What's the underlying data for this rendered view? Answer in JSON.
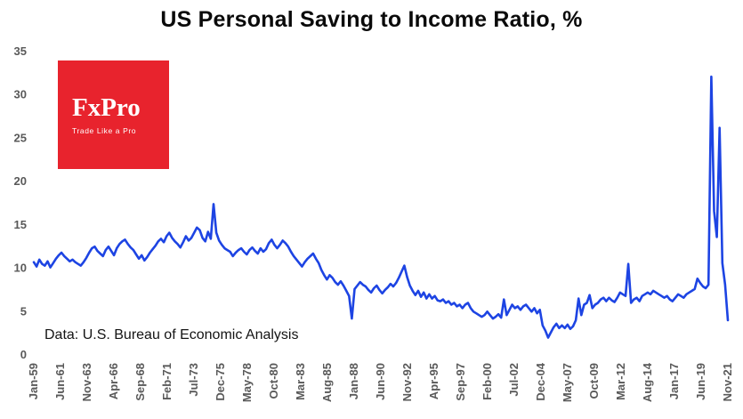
{
  "chart_data": {
    "type": "line",
    "title": "US Personal Saving to Income Ratio, %",
    "xlabel": "",
    "ylabel": "",
    "ylim": [
      0,
      35
    ],
    "y_ticks": [
      0,
      5,
      10,
      15,
      20,
      25,
      30,
      35
    ],
    "grid": false,
    "legend": "none",
    "x_tick_labels": [
      "Jan-59",
      "Jun-61",
      "Nov-63",
      "Apr-66",
      "Sep-68",
      "Feb-71",
      "Jul-73",
      "Dec-75",
      "May-78",
      "Oct-80",
      "Mar-83",
      "Aug-85",
      "Jan-88",
      "Jun-90",
      "Nov-92",
      "Apr-95",
      "Sep-97",
      "Feb-00",
      "Jul-02",
      "Dec-04",
      "May-07",
      "Oct-09",
      "Mar-12",
      "Aug-14",
      "Jan-17",
      "Jun-19",
      "Nov-21"
    ],
    "series": [
      {
        "name": "US Personal Saving to Income Ratio, %",
        "color": "#1d44e3",
        "x_start": "1959 Q1",
        "x_end": "2021 Q4",
        "frequency": "quarterly",
        "values": [
          10.6,
          10.1,
          10.9,
          10.4,
          10.2,
          10.7,
          10.0,
          10.5,
          11.0,
          11.4,
          11.7,
          11.3,
          11.0,
          10.7,
          10.9,
          10.6,
          10.4,
          10.2,
          10.6,
          11.1,
          11.7,
          12.2,
          12.4,
          11.9,
          11.6,
          11.3,
          12.0,
          12.4,
          11.9,
          11.4,
          12.2,
          12.7,
          13.0,
          13.2,
          12.7,
          12.3,
          12.0,
          11.5,
          11.0,
          11.4,
          10.8,
          11.2,
          11.7,
          12.1,
          12.5,
          13.0,
          13.3,
          12.9,
          13.6,
          14.0,
          13.4,
          13.0,
          12.7,
          12.3,
          12.9,
          13.6,
          13.1,
          13.4,
          14.0,
          14.6,
          14.3,
          13.4,
          13.0,
          14.1,
          13.3,
          17.3,
          14.0,
          13.1,
          12.6,
          12.2,
          12.0,
          11.8,
          11.3,
          11.7,
          12.0,
          12.2,
          11.8,
          11.5,
          12.0,
          12.3,
          11.9,
          11.6,
          12.2,
          11.8,
          12.1,
          12.8,
          13.2,
          12.6,
          12.2,
          12.6,
          13.1,
          12.8,
          12.4,
          11.8,
          11.3,
          10.9,
          10.5,
          10.1,
          10.6,
          11.0,
          11.3,
          11.6,
          11.0,
          10.5,
          9.7,
          9.1,
          8.6,
          9.1,
          8.8,
          8.3,
          8.0,
          8.4,
          7.9,
          7.3,
          6.7,
          4.1,
          7.5,
          7.9,
          8.3,
          8.0,
          7.8,
          7.4,
          7.1,
          7.6,
          7.9,
          7.4,
          7.0,
          7.4,
          7.7,
          8.1,
          7.8,
          8.2,
          8.8,
          9.5,
          10.2,
          8.9,
          7.9,
          7.3,
          6.8,
          7.3,
          6.6,
          7.1,
          6.4,
          6.9,
          6.4,
          6.7,
          6.2,
          6.1,
          6.3,
          5.9,
          6.1,
          5.7,
          5.9,
          5.5,
          5.7,
          5.3,
          5.7,
          5.9,
          5.3,
          4.9,
          4.7,
          4.5,
          4.3,
          4.5,
          4.9,
          4.5,
          4.1,
          4.3,
          4.6,
          4.2,
          6.3,
          4.5,
          5.1,
          5.7,
          5.3,
          5.5,
          5.1,
          5.5,
          5.7,
          5.3,
          4.9,
          5.3,
          4.7,
          5.1,
          3.3,
          2.7,
          1.9,
          2.5,
          3.1,
          3.5,
          3.0,
          3.3,
          3.0,
          3.4,
          2.9,
          3.2,
          3.9,
          6.4,
          4.5,
          5.7,
          5.9,
          6.8,
          5.3,
          5.7,
          5.9,
          6.3,
          6.5,
          6.1,
          6.5,
          6.2,
          6.0,
          6.5,
          7.1,
          6.9,
          6.7,
          10.4,
          5.9,
          6.3,
          6.5,
          6.1,
          6.7,
          6.9,
          7.1,
          6.9,
          7.3,
          7.1,
          6.9,
          6.7,
          6.5,
          6.7,
          6.3,
          6.1,
          6.5,
          6.9,
          6.7,
          6.5,
          6.9,
          7.1,
          7.3,
          7.5,
          8.7,
          8.2,
          7.8,
          7.6,
          8.0,
          32.0,
          16.5,
          13.5,
          26.1,
          10.5,
          8.0,
          3.9
        ]
      }
    ],
    "annotation": "Data: U.S. Bureau of Economic Analysis"
  },
  "logo": {
    "brand": "FxPro",
    "tagline": "Trade Like a Pro",
    "background_color": "#e8232d"
  },
  "colors": {
    "line": "#1d44e3",
    "axis_text": "#595959",
    "title_text": "#0a0a0a"
  }
}
